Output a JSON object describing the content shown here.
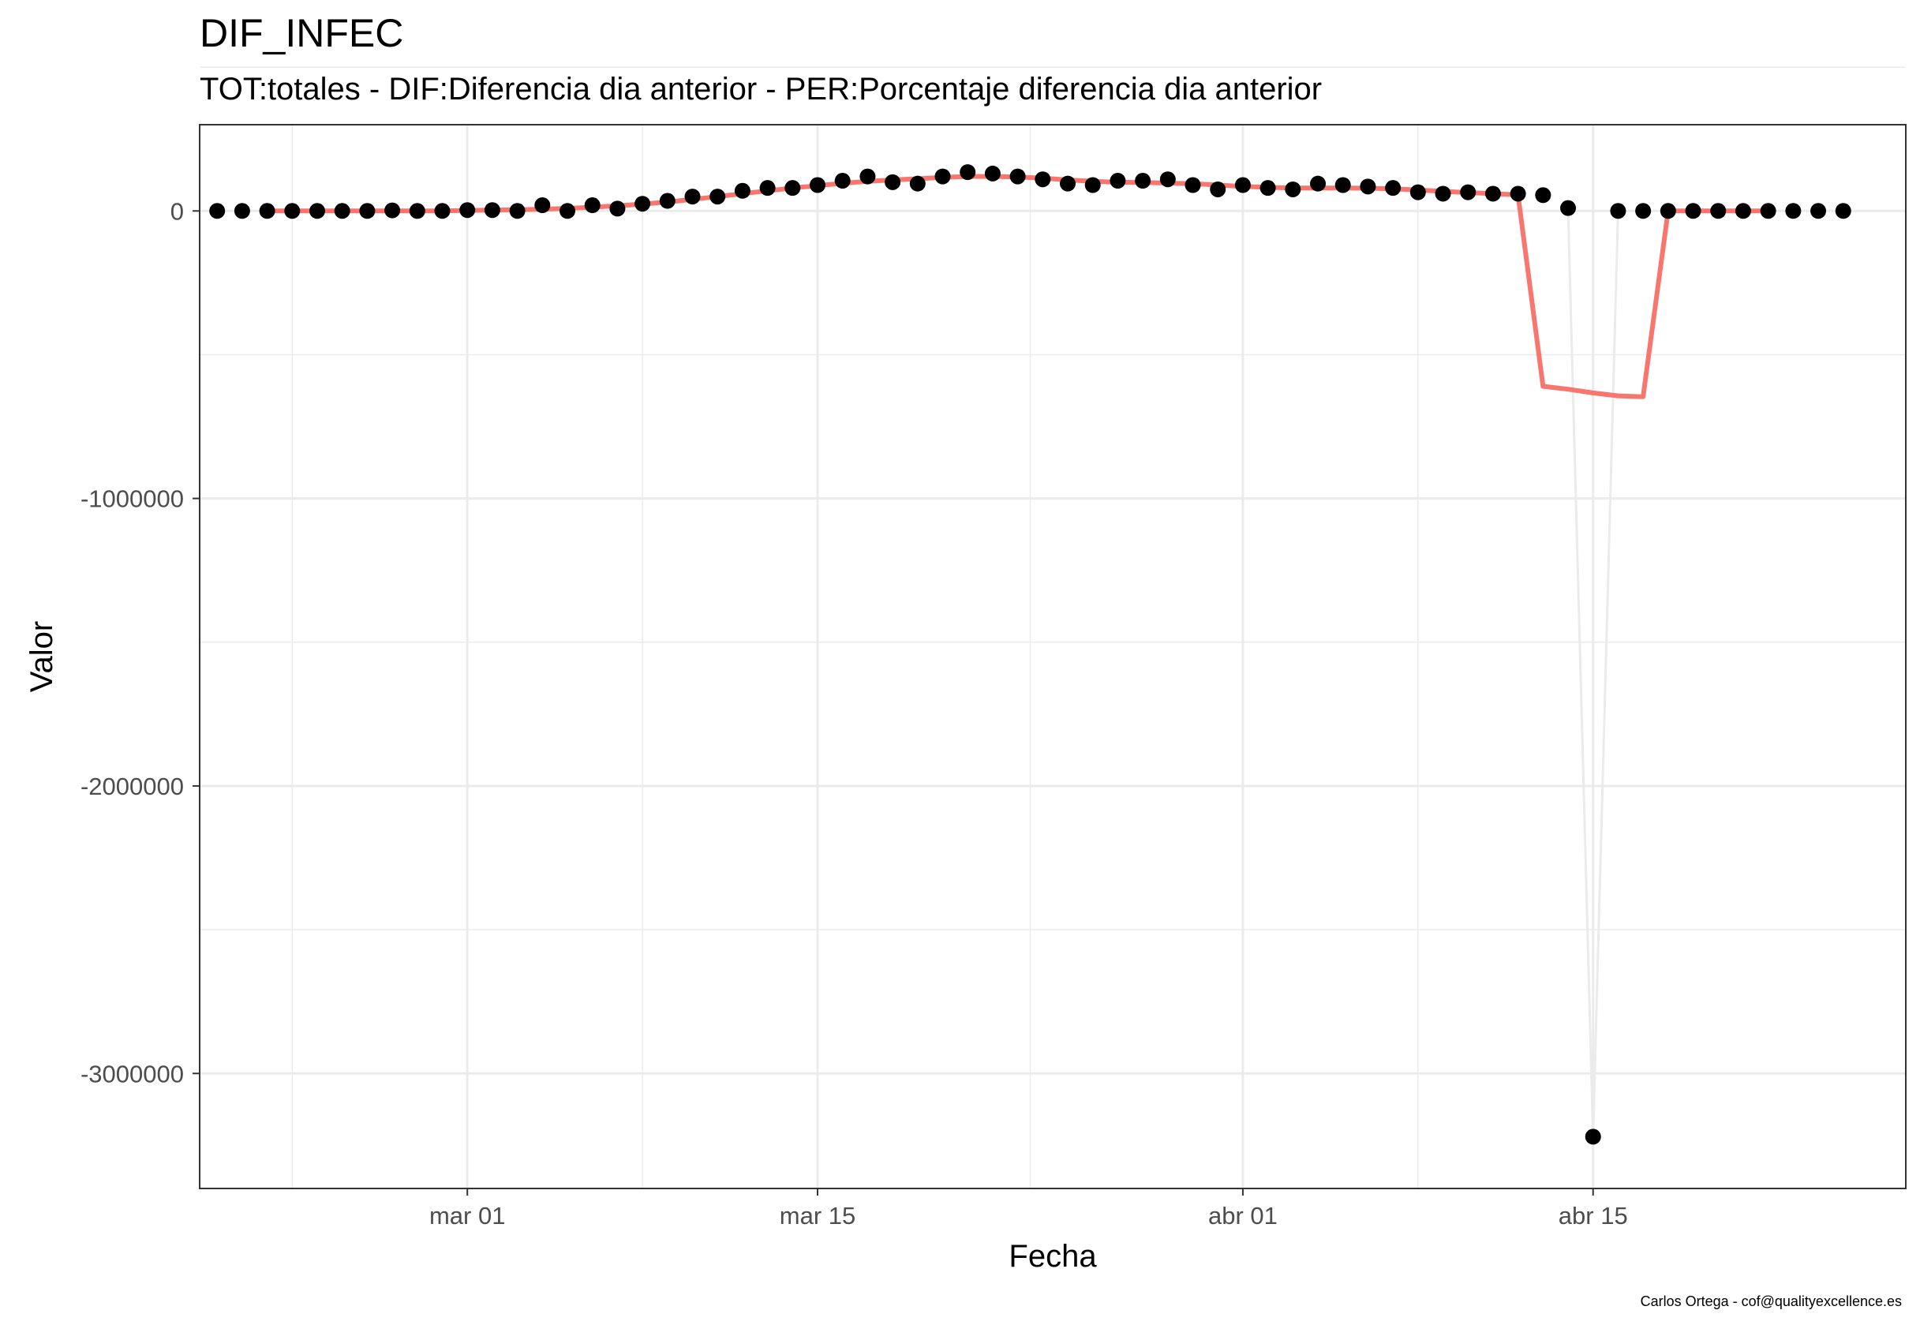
{
  "chart_data": {
    "type": "line",
    "title": "DIF_INFEC",
    "subtitle": "TOT:totales - DIF:Diferencia dia anterior - PER:Porcentaje diferencia dia anterior",
    "xlabel": "Fecha",
    "ylabel": "Valor",
    "caption": "Carlos Ortega - cof@qualityexcellence.es",
    "x_ticks": [
      {
        "label": "mar 01",
        "day": 0
      },
      {
        "label": "mar 15",
        "day": 14
      },
      {
        "label": "abr 01",
        "day": 31
      },
      {
        "label": "abr 15",
        "day": 45
      }
    ],
    "x_minor_ticks_day": [
      -7,
      7,
      22.5,
      38
    ],
    "xlim_day": [
      -10.7,
      57.5
    ],
    "y_ticks": [
      0,
      -1000000,
      -2000000,
      -3000000
    ],
    "y_minor_ticks": [
      500000,
      -500000,
      -1500000,
      -2500000
    ],
    "ylim": [
      -3400000,
      300000
    ],
    "grid": true,
    "legend": "none",
    "colors": {
      "points": "#000000",
      "raw_line": "#ebebeb",
      "smooth_line": "#f8766d",
      "grid": "#ebebeb",
      "panel_border": "#333333"
    },
    "series": [
      {
        "kind": "points",
        "x": [
          "feb 20",
          "feb 21",
          "feb 22",
          "feb 23",
          "feb 24",
          "feb 25",
          "feb 26",
          "feb 27",
          "feb 28",
          "feb 29",
          "mar 01",
          "mar 02",
          "mar 03",
          "mar 04",
          "mar 05",
          "mar 06",
          "mar 07",
          "mar 08",
          "mar 09",
          "mar 10",
          "mar 11",
          "mar 12",
          "mar 13",
          "mar 14",
          "mar 15",
          "mar 16",
          "mar 17",
          "mar 18",
          "mar 19",
          "mar 20",
          "mar 21",
          "mar 22",
          "mar 23",
          "mar 24",
          "mar 25",
          "mar 26",
          "mar 27",
          "mar 28",
          "mar 29",
          "mar 30",
          "mar 31",
          "abr 01",
          "abr 02",
          "abr 03",
          "abr 04",
          "abr 05",
          "abr 06",
          "abr 07",
          "abr 08",
          "abr 09",
          "abr 10",
          "abr 11",
          "abr 12",
          "abr 13",
          "abr 14",
          "abr 15",
          "abr 16",
          "abr 17",
          "abr 18",
          "abr 19",
          "abr 20",
          "abr 21",
          "abr 22",
          "abr 23",
          "abr 24",
          "abr 25"
        ],
        "day": [
          -10,
          -9,
          -8,
          -7,
          -6,
          -5,
          -4,
          -3,
          -2,
          -1,
          0,
          1,
          2,
          3,
          4,
          5,
          6,
          7,
          8,
          9,
          10,
          11,
          12,
          13,
          14,
          15,
          16,
          17,
          18,
          19,
          20,
          21,
          22,
          23,
          24,
          25,
          26,
          27,
          28,
          29,
          30,
          31,
          32,
          33,
          34,
          35,
          36,
          37,
          38,
          39,
          40,
          41,
          42,
          43,
          44,
          45,
          46,
          47,
          48,
          49,
          50,
          51,
          52,
          53,
          54,
          55
        ],
        "values": [
          0,
          0,
          0,
          0,
          0,
          0,
          0,
          2000,
          0,
          0,
          3000,
          3000,
          0,
          20000,
          0,
          20000,
          8000,
          25000,
          35000,
          50000,
          50000,
          70000,
          80000,
          80000,
          90000,
          105000,
          120000,
          100000,
          95000,
          120000,
          135000,
          130000,
          120000,
          110000,
          95000,
          90000,
          105000,
          105000,
          110000,
          90000,
          75000,
          90000,
          80000,
          75000,
          95000,
          90000,
          85000,
          80000,
          65000,
          60000,
          65000,
          60000,
          60000,
          55000,
          10000,
          -3220000,
          0,
          0,
          0,
          0,
          0,
          0,
          0,
          0,
          0,
          0
        ]
      },
      {
        "kind": "line",
        "name": "raw_spike",
        "day": [
          44,
          45,
          46
        ],
        "values": [
          10000,
          -3220000,
          0
        ]
      },
      {
        "kind": "line",
        "name": "smoothed",
        "day": [
          -8,
          -7,
          -6,
          -5,
          -4,
          -3,
          -2,
          -1,
          0,
          1,
          2,
          3,
          4,
          5,
          6,
          7,
          8,
          9,
          10,
          11,
          12,
          13,
          14,
          15,
          16,
          17,
          18,
          19,
          20,
          21,
          22,
          23,
          24,
          25,
          26,
          27,
          28,
          29,
          30,
          31,
          32,
          33,
          34,
          35,
          36,
          37,
          38,
          39,
          40,
          41,
          42,
          43,
          44,
          45,
          46,
          47,
          48,
          49,
          50,
          51,
          52
        ],
        "values": [
          0,
          0,
          0,
          0,
          0,
          0,
          0,
          0,
          2000,
          3000,
          4000,
          6000,
          9000,
          13000,
          18000,
          24000,
          31000,
          40000,
          50000,
          60000,
          70000,
          80000,
          88000,
          96000,
          103000,
          108000,
          112000,
          117000,
          120000,
          120000,
          118000,
          114000,
          108000,
          103000,
          100000,
          99000,
          97000,
          95000,
          90000,
          85000,
          82000,
          80000,
          80000,
          80000,
          79000,
          77000,
          73000,
          68000,
          64000,
          60000,
          56000,
          -610000,
          -620000,
          -633000,
          -643000,
          -646000,
          0,
          0,
          0,
          0,
          0
        ]
      }
    ]
  }
}
